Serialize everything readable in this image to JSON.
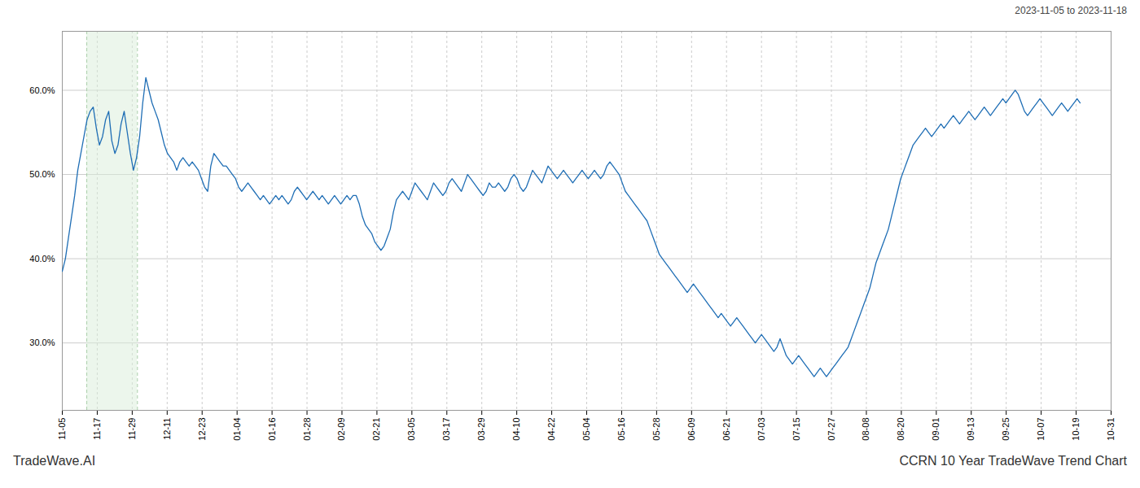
{
  "chart_data": {
    "type": "line",
    "title": "CCRN 10 Year TradeWave Trend Chart",
    "subtitle": "2023-11-05 to 2023-11-18",
    "annotations": [
      "TradeWave.AI"
    ],
    "color": "#1f6eb5",
    "grid": true,
    "xlim": [
      0,
      339
    ],
    "xticks": [
      {
        "value": 0,
        "label": "11-05"
      },
      {
        "value": 11.3,
        "label": "11-17"
      },
      {
        "value": 22.6,
        "label": "11-29"
      },
      {
        "value": 33.9,
        "label": "12-11"
      },
      {
        "value": 45.2,
        "label": "12-23"
      },
      {
        "value": 56.5,
        "label": "01-04"
      },
      {
        "value": 67.8,
        "label": "01-16"
      },
      {
        "value": 79.1,
        "label": "01-28"
      },
      {
        "value": 90.4,
        "label": "02-09"
      },
      {
        "value": 101.7,
        "label": "02-21"
      },
      {
        "value": 113,
        "label": "03-05"
      },
      {
        "value": 124.3,
        "label": "03-17"
      },
      {
        "value": 135.6,
        "label": "03-29"
      },
      {
        "value": 146.9,
        "label": "04-10"
      },
      {
        "value": 158.2,
        "label": "04-22"
      },
      {
        "value": 169.5,
        "label": "05-04"
      },
      {
        "value": 180.8,
        "label": "05-16"
      },
      {
        "value": 192.1,
        "label": "05-28"
      },
      {
        "value": 203.4,
        "label": "06-09"
      },
      {
        "value": 214.7,
        "label": "06-21"
      },
      {
        "value": 226,
        "label": "07-03"
      },
      {
        "value": 237.3,
        "label": "07-15"
      },
      {
        "value": 248.6,
        "label": "07-27"
      },
      {
        "value": 259.9,
        "label": "08-08"
      },
      {
        "value": 271.2,
        "label": "08-20"
      },
      {
        "value": 282.5,
        "label": "09-01"
      },
      {
        "value": 293.8,
        "label": "09-13"
      },
      {
        "value": 305.1,
        "label": "09-25"
      },
      {
        "value": 316.4,
        "label": "10-07"
      },
      {
        "value": 327.7,
        "label": "10-19"
      },
      {
        "value": 339,
        "label": "10-31"
      }
    ],
    "ylim": [
      22,
      67
    ],
    "yticks": [
      {
        "value": 30.0,
        "label": "30.0%"
      },
      {
        "value": 40.0,
        "label": "40.0%"
      },
      {
        "value": 50.0,
        "label": "50.0%"
      },
      {
        "value": 60.0,
        "label": "60.0%"
      }
    ],
    "highlight": {
      "x": [
        7.91,
        24.295
      ],
      "color": "#daeeda"
    },
    "values": [
      38.5,
      40.0,
      42.5,
      45.0,
      47.5,
      50.5,
      52.5,
      54.5,
      56.5,
      57.5,
      58.0,
      55.5,
      53.5,
      54.5,
      56.5,
      57.5,
      54.0,
      52.5,
      53.5,
      56.0,
      57.5,
      55.0,
      52.5,
      50.5,
      52.0,
      54.5,
      58.5,
      61.5,
      60.0,
      58.5,
      57.5,
      56.5,
      55.0,
      53.5,
      52.5,
      52.0,
      51.5,
      50.5,
      51.5,
      52.0,
      51.5,
      51.0,
      51.5,
      51.0,
      50.5,
      49.5,
      48.5,
      48.0,
      51.0,
      52.5,
      52.0,
      51.5,
      51.0,
      51.0,
      50.5,
      50.0,
      49.5,
      48.5,
      48.0,
      48.5,
      49.0,
      48.5,
      48.0,
      47.5,
      47.0,
      47.5,
      47.0,
      46.5,
      47.0,
      47.5,
      47.0,
      47.5,
      47.0,
      46.5,
      47.0,
      48.0,
      48.5,
      48.0,
      47.5,
      47.0,
      47.5,
      48.0,
      47.5,
      47.0,
      47.5,
      47.0,
      46.5,
      47.0,
      47.5,
      47.0,
      46.5,
      47.0,
      47.5,
      47.0,
      47.5,
      47.5,
      46.5,
      45.0,
      44.0,
      43.5,
      43.0,
      42.0,
      41.5,
      41.0,
      41.5,
      42.5,
      43.5,
      45.5,
      47.0,
      47.5,
      48.0,
      47.5,
      47.0,
      48.0,
      49.0,
      48.5,
      48.0,
      47.5,
      47.0,
      48.0,
      49.0,
      48.5,
      48.0,
      47.5,
      48.0,
      49.0,
      49.5,
      49.0,
      48.5,
      48.0,
      49.0,
      50.0,
      49.5,
      49.0,
      48.5,
      48.0,
      47.5,
      48.0,
      49.0,
      48.5,
      48.5,
      49.0,
      48.5,
      48.0,
      48.5,
      49.5,
      50.0,
      49.5,
      48.5,
      48.0,
      48.5,
      49.5,
      50.5,
      50.0,
      49.5,
      49.0,
      50.0,
      51.0,
      50.5,
      50.0,
      49.5,
      50.0,
      50.5,
      50.0,
      49.5,
      49.0,
      49.5,
      50.0,
      50.5,
      50.0,
      49.5,
      50.0,
      50.5,
      50.0,
      49.5,
      50.0,
      51.0,
      51.5,
      51.0,
      50.5,
      50.0,
      49.0,
      48.0,
      47.5,
      47.0,
      46.5,
      46.0,
      45.5,
      45.0,
      44.5,
      43.5,
      42.5,
      41.5,
      40.5,
      40.0,
      39.5,
      39.0,
      38.5,
      38.0,
      37.5,
      37.0,
      36.5,
      36.0,
      36.5,
      37.0,
      36.5,
      36.0,
      35.5,
      35.0,
      34.5,
      34.0,
      33.5,
      33.0,
      33.5,
      33.0,
      32.5,
      32.0,
      32.5,
      33.0,
      32.5,
      32.0,
      31.5,
      31.0,
      30.5,
      30.0,
      30.5,
      31.0,
      30.5,
      30.0,
      29.5,
      29.0,
      29.5,
      30.5,
      29.5,
      28.5,
      28.0,
      27.5,
      28.0,
      28.5,
      28.0,
      27.5,
      27.0,
      26.5,
      26.0,
      26.5,
      27.0,
      26.5,
      26.0,
      26.5,
      27.0,
      27.5,
      28.0,
      28.5,
      29.0,
      29.5,
      30.5,
      31.5,
      32.5,
      33.5,
      34.5,
      35.5,
      36.5,
      38.0,
      39.5,
      40.5,
      41.5,
      42.5,
      43.5,
      45.0,
      46.5,
      48.0,
      49.5,
      50.5,
      51.5,
      52.5,
      53.5,
      54.0,
      54.5,
      55.0,
      55.5,
      55.0,
      54.5,
      55.0,
      55.5,
      56.0,
      55.5,
      56.0,
      56.5,
      57.0,
      56.5,
      56.0,
      56.5,
      57.0,
      57.5,
      57.0,
      56.5,
      57.0,
      57.5,
      58.0,
      57.5,
      57.0,
      57.5,
      58.0,
      58.5,
      59.0,
      58.5,
      59.0,
      59.5,
      60.0,
      59.5,
      58.5,
      57.5,
      57.0,
      57.5,
      58.0,
      58.5,
      59.0,
      58.5,
      58.0,
      57.5,
      57.0,
      57.5,
      58.0,
      58.5,
      58.0,
      57.5,
      58.0,
      58.5,
      59.0,
      58.5
    ]
  }
}
